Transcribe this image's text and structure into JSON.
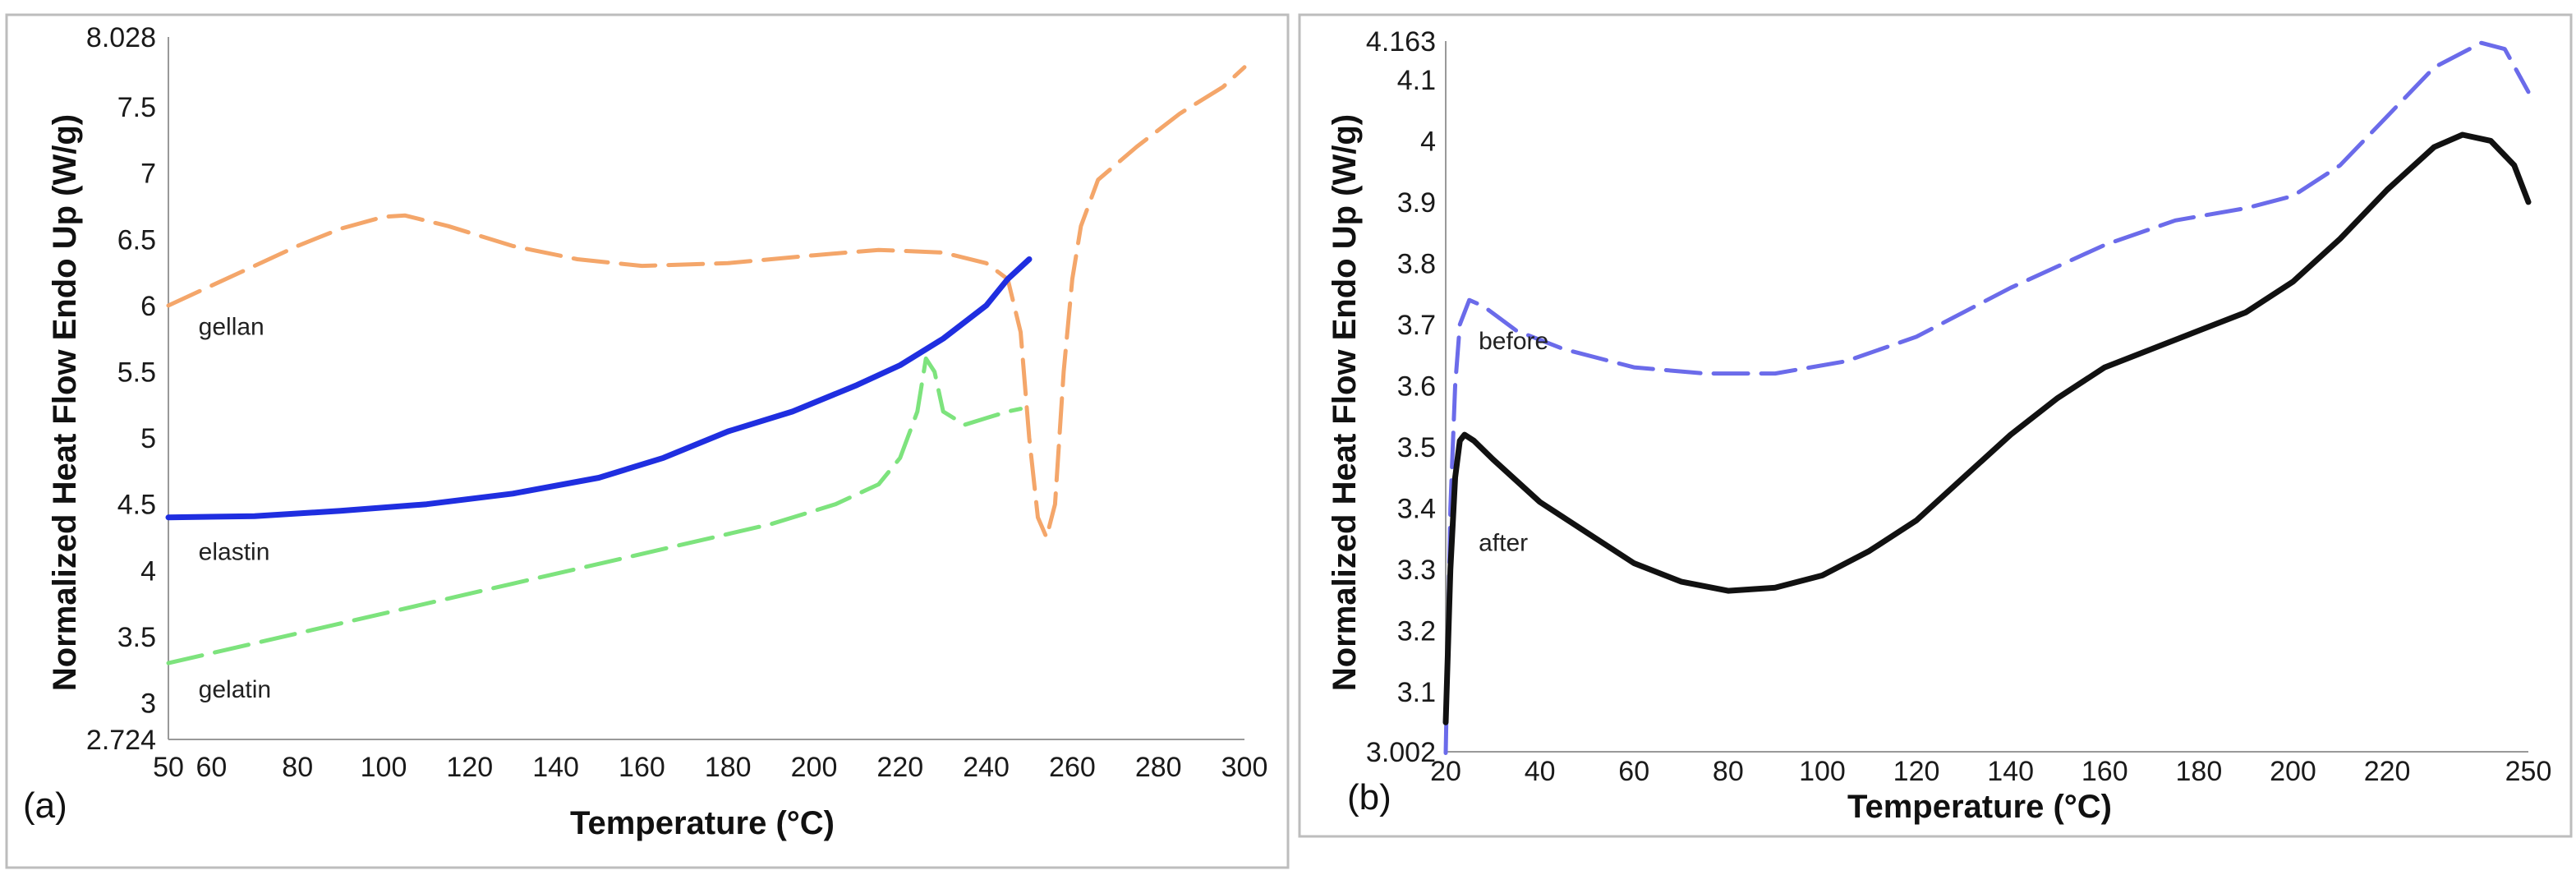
{
  "chart_data": [
    {
      "type": "line",
      "panel_label": "(a)",
      "xlabel": "Temperature (°C)",
      "ylabel": "Normalized Heat Flow Endo Up (W/g)",
      "xlim": [
        50,
        300
      ],
      "ylim": [
        2.724,
        8.028
      ],
      "x_ticks": [
        50,
        60,
        80,
        100,
        120,
        140,
        160,
        180,
        200,
        220,
        240,
        260,
        280,
        300
      ],
      "y_ticks": [
        2.724,
        3.0,
        3.5,
        4.0,
        4.5,
        5.0,
        5.5,
        6.0,
        6.5,
        7.0,
        7.5,
        8.028
      ],
      "grid": false,
      "series": [
        {
          "name": "gellan",
          "color": "#f4a66a",
          "style": "dashed",
          "label_at": [
            57,
            5.78
          ],
          "points": [
            [
              50,
              6.0
            ],
            [
              60,
              6.15
            ],
            [
              70,
              6.3
            ],
            [
              80,
              6.45
            ],
            [
              90,
              6.58
            ],
            [
              100,
              6.67
            ],
            [
              105,
              6.68
            ],
            [
              115,
              6.6
            ],
            [
              130,
              6.45
            ],
            [
              145,
              6.35
            ],
            [
              160,
              6.3
            ],
            [
              180,
              6.32
            ],
            [
              200,
              6.38
            ],
            [
              215,
              6.42
            ],
            [
              230,
              6.4
            ],
            [
              240,
              6.32
            ],
            [
              245,
              6.2
            ],
            [
              248,
              5.8
            ],
            [
              250,
              5.0
            ],
            [
              252,
              4.4
            ],
            [
              254,
              4.25
            ],
            [
              256,
              4.5
            ],
            [
              258,
              5.5
            ],
            [
              260,
              6.2
            ],
            [
              262,
              6.6
            ],
            [
              266,
              6.95
            ],
            [
              275,
              7.2
            ],
            [
              285,
              7.45
            ],
            [
              295,
              7.65
            ],
            [
              300,
              7.8
            ]
          ]
        },
        {
          "name": "elastin",
          "color": "#1f2ee0",
          "style": "solid",
          "label_at": [
            57,
            4.08
          ],
          "points": [
            [
              50,
              4.4
            ],
            [
              70,
              4.41
            ],
            [
              90,
              4.45
            ],
            [
              110,
              4.5
            ],
            [
              130,
              4.58
            ],
            [
              150,
              4.7
            ],
            [
              165,
              4.85
            ],
            [
              180,
              5.05
            ],
            [
              195,
              5.2
            ],
            [
              210,
              5.4
            ],
            [
              220,
              5.55
            ],
            [
              230,
              5.75
            ],
            [
              240,
              6.0
            ],
            [
              245,
              6.2
            ],
            [
              250,
              6.35
            ]
          ]
        },
        {
          "name": "gelatin",
          "color": "#7de37d",
          "style": "dashed",
          "label_at": [
            57,
            3.04
          ],
          "points": [
            [
              50,
              3.3
            ],
            [
              70,
              3.45
            ],
            [
              90,
              3.6
            ],
            [
              110,
              3.75
            ],
            [
              130,
              3.9
            ],
            [
              150,
              4.05
            ],
            [
              170,
              4.2
            ],
            [
              190,
              4.35
            ],
            [
              205,
              4.5
            ],
            [
              215,
              4.65
            ],
            [
              220,
              4.85
            ],
            [
              224,
              5.2
            ],
            [
              226,
              5.6
            ],
            [
              228,
              5.5
            ],
            [
              230,
              5.2
            ],
            [
              235,
              5.1
            ],
            [
              240,
              5.15
            ],
            [
              245,
              5.2
            ],
            [
              248,
              5.22
            ]
          ]
        }
      ]
    },
    {
      "type": "line",
      "panel_label": "(b)",
      "xlabel": "Temperature (°C)",
      "ylabel": "Normalized Heat Flow Endo Up (W/g)",
      "xlim": [
        20,
        250
      ],
      "ylim": [
        3.002,
        4.163
      ],
      "x_ticks": [
        20,
        40,
        60,
        80,
        100,
        120,
        140,
        160,
        180,
        200,
        220,
        250
      ],
      "y_ticks": [
        3.002,
        3.1,
        3.2,
        3.3,
        3.4,
        3.5,
        3.6,
        3.7,
        3.8,
        3.9,
        4.0,
        4.1,
        4.163
      ],
      "grid": false,
      "series": [
        {
          "name": "before",
          "color": "#6b6bea",
          "style": "dashed",
          "label_at": [
            27,
            3.66
          ],
          "points": [
            [
              20,
              3.0
            ],
            [
              21,
              3.4
            ],
            [
              22,
              3.6
            ],
            [
              23,
              3.7
            ],
            [
              25,
              3.74
            ],
            [
              28,
              3.73
            ],
            [
              35,
              3.69
            ],
            [
              45,
              3.66
            ],
            [
              60,
              3.63
            ],
            [
              75,
              3.62
            ],
            [
              90,
              3.62
            ],
            [
              105,
              3.64
            ],
            [
              120,
              3.68
            ],
            [
              140,
              3.76
            ],
            [
              160,
              3.83
            ],
            [
              175,
              3.87
            ],
            [
              190,
              3.89
            ],
            [
              200,
              3.91
            ],
            [
              210,
              3.96
            ],
            [
              220,
              4.04
            ],
            [
              230,
              4.12
            ],
            [
              240,
              4.16
            ],
            [
              245,
              4.15
            ],
            [
              250,
              4.08
            ]
          ]
        },
        {
          "name": "after",
          "color": "#111111",
          "style": "solid",
          "label_at": [
            27,
            3.33
          ],
          "points": [
            [
              20,
              3.05
            ],
            [
              21,
              3.3
            ],
            [
              22,
              3.45
            ],
            [
              23,
              3.51
            ],
            [
              24,
              3.52
            ],
            [
              26,
              3.51
            ],
            [
              30,
              3.48
            ],
            [
              40,
              3.41
            ],
            [
              50,
              3.36
            ],
            [
              60,
              3.31
            ],
            [
              70,
              3.28
            ],
            [
              80,
              3.265
            ],
            [
              90,
              3.27
            ],
            [
              100,
              3.29
            ],
            [
              110,
              3.33
            ],
            [
              120,
              3.38
            ],
            [
              130,
              3.45
            ],
            [
              140,
              3.52
            ],
            [
              150,
              3.58
            ],
            [
              160,
              3.63
            ],
            [
              170,
              3.66
            ],
            [
              180,
              3.69
            ],
            [
              190,
              3.72
            ],
            [
              200,
              3.77
            ],
            [
              210,
              3.84
            ],
            [
              220,
              3.92
            ],
            [
              230,
              3.99
            ],
            [
              236,
              4.01
            ],
            [
              242,
              4.0
            ],
            [
              247,
              3.96
            ],
            [
              250,
              3.9
            ]
          ]
        }
      ]
    }
  ]
}
